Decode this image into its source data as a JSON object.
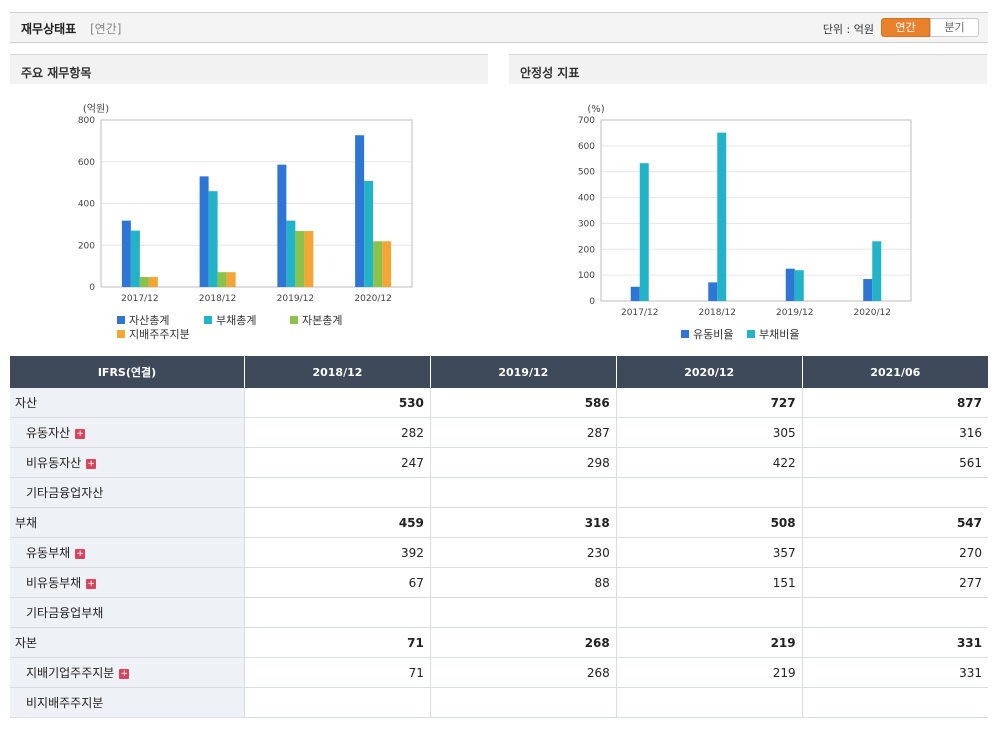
{
  "header": {
    "title": "재무상태표",
    "subtitle": "[연간]",
    "unit_label": "단위 : 억원",
    "toggle_annual": "연간",
    "toggle_quarter": "분기"
  },
  "panels": {
    "left_title": "주요 재무항목",
    "right_title": "안정성 지표"
  },
  "chart_data": [
    {
      "type": "bar",
      "ylabel": "(억원)",
      "ylim": [
        0,
        800
      ],
      "yticks": [
        "0",
        "200",
        "400",
        "600",
        "800"
      ],
      "categories": [
        "2017/12",
        "2018/12",
        "2019/12",
        "2020/12"
      ],
      "series": [
        {
          "name": "자산총계",
          "color": "#2f75d6",
          "values": [
            318,
            530,
            586,
            727
          ]
        },
        {
          "name": "부채총계",
          "color": "#22b3c9",
          "values": [
            270,
            459,
            318,
            508
          ]
        },
        {
          "name": "자본총계",
          "color": "#8bc34a",
          "values": [
            48,
            71,
            268,
            219
          ]
        },
        {
          "name": "지배주주지분",
          "color": "#f3a535",
          "values": [
            48,
            71,
            268,
            219
          ]
        }
      ],
      "legend": "bottom",
      "grid": true
    },
    {
      "type": "bar",
      "ylabel": "(%)",
      "ylim": [
        0,
        700
      ],
      "yticks": [
        "0",
        "100",
        "200",
        "300",
        "400",
        "500",
        "600",
        "700"
      ],
      "categories": [
        "2017/12",
        "2018/12",
        "2019/12",
        "2020/12"
      ],
      "series": [
        {
          "name": "유동비율",
          "color": "#2f75d6",
          "values": [
            55,
            72,
            125,
            85
          ]
        },
        {
          "name": "부채비율",
          "color": "#22b3c9",
          "values": [
            533,
            651,
            119,
            231
          ]
        }
      ],
      "legend": "bottom",
      "grid": true
    }
  ],
  "table": {
    "corner": "IFRS(연결)",
    "columns": [
      "2018/12",
      "2019/12",
      "2020/12",
      "2021/06"
    ],
    "rows": [
      {
        "label": "자산",
        "bold": true,
        "sub": false,
        "plus": false,
        "values": [
          "530",
          "586",
          "727",
          "877"
        ]
      },
      {
        "label": "유동자산",
        "bold": false,
        "sub": true,
        "plus": true,
        "values": [
          "282",
          "287",
          "305",
          "316"
        ]
      },
      {
        "label": "비유동자산",
        "bold": false,
        "sub": true,
        "plus": true,
        "values": [
          "247",
          "298",
          "422",
          "561"
        ]
      },
      {
        "label": "기타금융업자산",
        "bold": false,
        "sub": true,
        "plus": false,
        "values": [
          "",
          "",
          "",
          ""
        ]
      },
      {
        "label": "부채",
        "bold": true,
        "sub": false,
        "plus": false,
        "values": [
          "459",
          "318",
          "508",
          "547"
        ]
      },
      {
        "label": "유동부채",
        "bold": false,
        "sub": true,
        "plus": true,
        "values": [
          "392",
          "230",
          "357",
          "270"
        ]
      },
      {
        "label": "비유동부채",
        "bold": false,
        "sub": true,
        "plus": true,
        "values": [
          "67",
          "88",
          "151",
          "277"
        ]
      },
      {
        "label": "기타금융업부채",
        "bold": false,
        "sub": true,
        "plus": false,
        "values": [
          "",
          "",
          "",
          ""
        ]
      },
      {
        "label": "자본",
        "bold": true,
        "sub": false,
        "plus": false,
        "values": [
          "71",
          "268",
          "219",
          "331"
        ]
      },
      {
        "label": "지배기업주주지분",
        "bold": false,
        "sub": true,
        "plus": true,
        "values": [
          "71",
          "268",
          "219",
          "331"
        ]
      },
      {
        "label": "비지배주주지분",
        "bold": false,
        "sub": true,
        "plus": false,
        "values": [
          "",
          "",
          "",
          ""
        ]
      }
    ],
    "plus_glyph": "+"
  }
}
